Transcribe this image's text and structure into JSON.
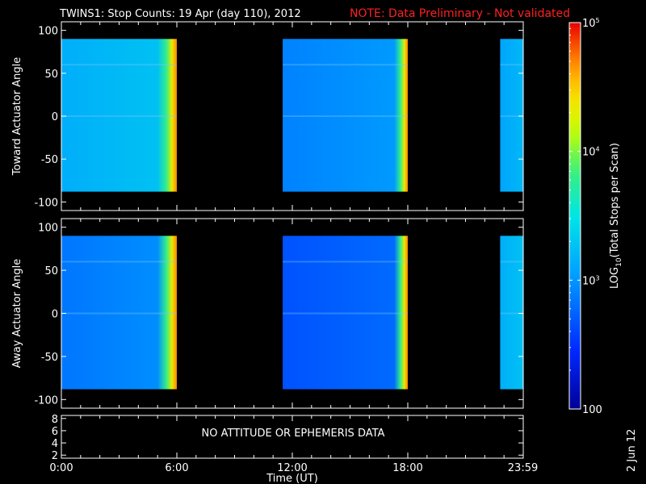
{
  "title": "TWINS1: Stop Counts: 19 Apr (day 110), 2012",
  "note": "NOTE: Data Preliminary - Not validated",
  "creation_date": "2 Jun 12",
  "no_data_message": "NO ATTITUDE OR EPHEMERIS DATA",
  "colors": {
    "background": "#000000",
    "text": "#ffffff",
    "note": "#ff2020"
  },
  "colorbar": {
    "label": "LOG10(Total Stops per Scan)",
    "label_base": "LOG",
    "label_sub": "10",
    "label_rest": "(Total Stops per Scan)",
    "tick_labels": [
      {
        "text": "100",
        "value": 100
      },
      {
        "text": "10",
        "sup": "3",
        "value": 1000
      },
      {
        "text": "10",
        "sup": "4",
        "value": 10000
      },
      {
        "text": "10",
        "sup": "5",
        "value": 100000
      }
    ],
    "range": [
      100,
      100000
    ],
    "scale": "log",
    "colormap": "rainbow (dark blue → cyan → yellow → red)"
  },
  "chart_data": [
    {
      "type": "heatmap",
      "panel": "toward",
      "ylabel": "Toward Actuator Angle",
      "xlabel": "",
      "ylim": [
        -110,
        110
      ],
      "yticks": [
        100,
        50,
        0,
        -50,
        -100
      ],
      "xlim_hours": [
        0,
        24
      ],
      "data_angle_range": [
        -88,
        90
      ],
      "segments": [
        {
          "start_hour": 0.0,
          "end_hour": 6.0,
          "base_level": 0.38,
          "edge_rise_start": 5.0
        },
        {
          "start_hour": 11.5,
          "end_hour": 18.0,
          "base_level": 0.3,
          "edge_rise_start": 17.3
        },
        {
          "start_hour": 22.8,
          "end_hour": 23.98,
          "base_level": 0.36,
          "edge_rise_start": 23.98
        }
      ]
    },
    {
      "type": "heatmap",
      "panel": "away",
      "ylabel": "Away Actuator Angle",
      "xlabel": "",
      "ylim": [
        -110,
        110
      ],
      "yticks": [
        100,
        50,
        0,
        -50,
        -100
      ],
      "xlim_hours": [
        0,
        24
      ],
      "data_angle_range": [
        -88,
        90
      ],
      "segments": [
        {
          "start_hour": 0.0,
          "end_hour": 6.0,
          "base_level": 0.28,
          "edge_rise_start": 5.0
        },
        {
          "start_hour": 11.5,
          "end_hour": 18.0,
          "base_level": 0.22,
          "edge_rise_start": 17.3
        },
        {
          "start_hour": 22.8,
          "end_hour": 23.98,
          "base_level": 0.38,
          "edge_rise_start": 23.98
        }
      ]
    },
    {
      "type": "line",
      "panel": "attitude",
      "ylim": [
        1.5,
        8.5
      ],
      "yticks": [
        8,
        6,
        4,
        2
      ],
      "xlabel": "Time (UT)",
      "xticks": [
        {
          "hour": 0,
          "label": "0:00"
        },
        {
          "hour": 6,
          "label": "6:00"
        },
        {
          "hour": 12,
          "label": "12:00"
        },
        {
          "hour": 18,
          "label": "18:00"
        },
        {
          "hour": 23.98,
          "label": "23:59"
        }
      ],
      "series": []
    }
  ]
}
